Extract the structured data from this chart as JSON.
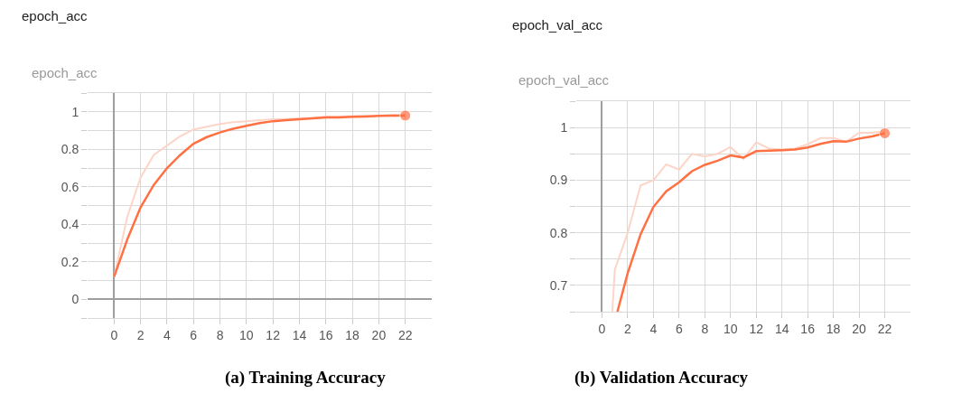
{
  "chart_data": [
    {
      "type": "line",
      "title": "epoch_acc",
      "subtitle": "epoch_acc",
      "annotations": [
        "(a) Training Accuracy"
      ],
      "x": [
        0,
        1,
        2,
        3,
        4,
        5,
        6,
        7,
        8,
        9,
        10,
        11,
        12,
        13,
        14,
        15,
        16,
        17,
        18,
        19,
        20,
        21,
        22
      ],
      "series": [
        {
          "color": "#fdd5c8",
          "values": [
            0.12,
            0.44,
            0.65,
            0.77,
            0.82,
            0.87,
            0.905,
            0.92,
            0.935,
            0.945,
            0.95,
            0.955,
            0.96,
            0.962,
            0.965,
            0.968,
            0.975,
            0.975,
            0.977,
            0.978,
            0.98,
            0.982,
            0.982
          ]
        },
        {
          "color": "#ff7043",
          "values": [
            0.12,
            0.32,
            0.49,
            0.61,
            0.7,
            0.77,
            0.83,
            0.865,
            0.89,
            0.91,
            0.925,
            0.94,
            0.95,
            0.955,
            0.96,
            0.965,
            0.97,
            0.97,
            0.973,
            0.975,
            0.978,
            0.98,
            0.98
          ]
        }
      ],
      "xlim": [
        -2,
        24
      ],
      "ylim": [
        -0.1,
        1.1
      ],
      "xticks": [
        0,
        2,
        4,
        6,
        8,
        10,
        12,
        14,
        16,
        18,
        20,
        22
      ],
      "yticks": [
        {
          "value": -0.1,
          "label": null
        },
        0,
        {
          "value": 0.1,
          "label": null
        },
        0.2,
        {
          "value": 0.3,
          "label": null
        },
        0.4,
        {
          "value": 0.5,
          "label": null
        },
        0.6,
        {
          "value": 0.7,
          "label": null
        },
        0.8,
        {
          "value": 0.9,
          "label": null
        },
        1,
        {
          "value": 1.1,
          "label": null
        }
      ],
      "grid": true,
      "marker": "none",
      "line_style": "solid"
    },
    {
      "type": "line",
      "title": "epoch_val_acc",
      "subtitle": "epoch_val_acc",
      "annotations": [
        "(b) Validation Accuracy"
      ],
      "series": [
        {
          "color": "#fdd5c8",
          "x": [
            0.8,
            1,
            2,
            3,
            4,
            5,
            6,
            7,
            8,
            9,
            10,
            11,
            12,
            13,
            14,
            15,
            16,
            17,
            18,
            19,
            20,
            21,
            22
          ],
          "values": [
            0.65,
            0.73,
            0.8,
            0.89,
            0.9,
            0.93,
            0.92,
            0.95,
            0.945,
            0.95,
            0.963,
            0.94,
            0.972,
            0.96,
            0.958,
            0.96,
            0.968,
            0.98,
            0.98,
            0.973,
            0.99,
            0.99,
            0.993
          ]
        },
        {
          "color": "#ff7043",
          "x": [
            1.2,
            2,
            3,
            4,
            5,
            6,
            7,
            8,
            9,
            10,
            11,
            12,
            13,
            14,
            15,
            16,
            17,
            18,
            19,
            20,
            21,
            22
          ],
          "values": [
            0.65,
            0.723,
            0.797,
            0.849,
            0.879,
            0.896,
            0.917,
            0.929,
            0.937,
            0.947,
            0.943,
            0.955,
            0.956,
            0.957,
            0.958,
            0.962,
            0.969,
            0.974,
            0.973,
            0.979,
            0.983,
            0.989
          ]
        }
      ],
      "xlim": [
        -2,
        24
      ],
      "ylim": [
        0.65,
        1.05
      ],
      "xticks": [
        0,
        2,
        4,
        6,
        8,
        10,
        12,
        14,
        16,
        18,
        20,
        22
      ],
      "yticks": [
        {
          "value": 0.65,
          "label": null
        },
        0.7,
        {
          "value": 0.75,
          "label": null
        },
        0.8,
        {
          "value": 0.85,
          "label": null
        },
        0.9,
        {
          "value": 0.95,
          "label": null
        },
        1,
        {
          "value": 1.05,
          "label": null
        }
      ],
      "grid": true,
      "marker": "none",
      "line_style": "solid"
    }
  ]
}
